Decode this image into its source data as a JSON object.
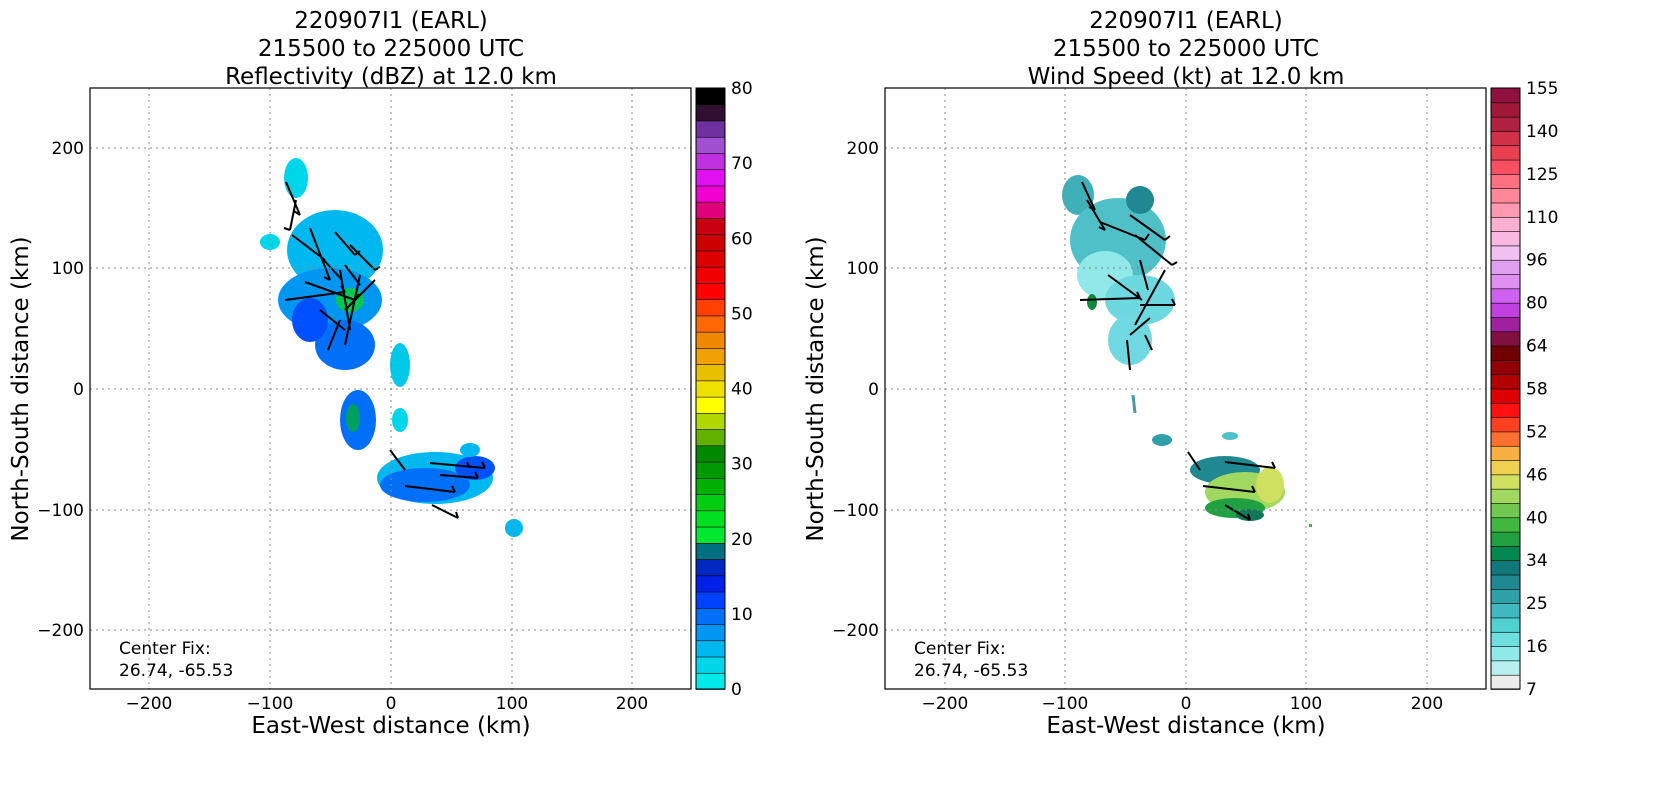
{
  "panels": [
    {
      "title_lines": [
        "220907I1 (EARL)",
        "215500 to 225000 UTC",
        "Reflectivity (dBZ) at 12.0 km"
      ],
      "xlabel": "East-West distance (km)",
      "ylabel": "North-South distance (km)",
      "note_lines": [
        "Center Fix:",
        "26.74, -65.53"
      ],
      "colorbar": {
        "ticks": [
          "0",
          "10",
          "20",
          "30",
          "40",
          "50",
          "60",
          "70",
          "80"
        ],
        "colors": [
          "#00eaea",
          "#00d6ea",
          "#00b8f0",
          "#0096f2",
          "#0070f8",
          "#0040ff",
          "#0020e8",
          "#0028c0",
          "#007080",
          "#00e830",
          "#00e020",
          "#00cc10",
          "#00b000",
          "#009800",
          "#008800",
          "#60b000",
          "#b0d800",
          "#ffff00",
          "#f0e000",
          "#e8c000",
          "#f0a000",
          "#f08800",
          "#ff6800",
          "#ff4000",
          "#ff0000",
          "#f00000",
          "#dd0000",
          "#cc0000",
          "#c80010",
          "#e0007a",
          "#f000d0",
          "#e010f0",
          "#c030e0",
          "#a050d0",
          "#7030a0",
          "#301030",
          "#000000"
        ]
      }
    },
    {
      "title_lines": [
        "220907I1 (EARL)",
        "215500 to 225000 UTC",
        "Wind Speed (kt) at 12.0 km"
      ],
      "xlabel": "East-West distance (km)",
      "ylabel": "North-South distance (km)",
      "note_lines": [
        "Center Fix:",
        "26.74, -65.53"
      ],
      "colorbar": {
        "ticks": [
          "7",
          "16",
          "25",
          "34",
          "40",
          "46",
          "52",
          "58",
          "64",
          "80",
          "96",
          "110",
          "125",
          "140",
          "155"
        ],
        "colors": [
          "#ececec",
          "#b8f0f0",
          "#90eaea",
          "#6ee0e0",
          "#50d0d0",
          "#40b8c0",
          "#30a0a8",
          "#208890",
          "#107878",
          "#008850",
          "#20a040",
          "#40b840",
          "#70c850",
          "#a0d860",
          "#d0e060",
          "#f0d050",
          "#f8b040",
          "#ff7030",
          "#ff4020",
          "#ff1010",
          "#dd0000",
          "#b00000",
          "#900000",
          "#700000",
          "#801040",
          "#a020a0",
          "#c040e0",
          "#d060f0",
          "#e090f0",
          "#e0a0f0",
          "#f0c0f0",
          "#f8b8e0",
          "#ffb0d0",
          "#ff98b0",
          "#ff8898",
          "#ff7080",
          "#f85060",
          "#e84050",
          "#d03048",
          "#b02040",
          "#a01838",
          "#901040"
        ]
      }
    }
  ],
  "chart_data": [
    {
      "type": "heatmap",
      "title": "220907I1 (EARL) 215500 to 225000 UTC Reflectivity (dBZ) at 12.0 km",
      "xlabel": "East-West distance (km)",
      "ylabel": "North-South distance (km)",
      "xlim": [
        -250,
        250
      ],
      "ylim": [
        -250,
        250
      ],
      "xticks": [
        -200,
        -100,
        0,
        100,
        200
      ],
      "yticks": [
        -200,
        -100,
        0,
        100,
        200
      ],
      "grid": true,
      "colorbar_range": [
        0,
        80
      ],
      "colorbar_label": "dBZ",
      "echo_regions_dbz": [
        {
          "x": -40,
          "y": 70,
          "dbz": 12
        },
        {
          "x": -55,
          "y": 110,
          "dbz": 6
        },
        {
          "x": -35,
          "y": -30,
          "dbz": 14
        },
        {
          "x": 40,
          "y": -80,
          "dbz": 11
        },
        {
          "x": -85,
          "y": 180,
          "dbz": 4
        },
        {
          "x": 105,
          "y": -115,
          "dbz": 5
        }
      ]
    },
    {
      "type": "heatmap",
      "title": "220907I1 (EARL) 215500 to 225000 UTC Wind Speed (kt) at 12.0 km",
      "xlabel": "East-West distance (km)",
      "ylabel": "North-South distance (km)",
      "xlim": [
        -250,
        250
      ],
      "ylim": [
        -250,
        250
      ],
      "xticks": [
        -200,
        -100,
        0,
        100,
        200
      ],
      "yticks": [
        -200,
        -100,
        0,
        100,
        200
      ],
      "grid": true,
      "colorbar_range": [
        7,
        155
      ],
      "colorbar_label": "kt",
      "wind_regions_kt": [
        {
          "x": -60,
          "y": 110,
          "kt": 20
        },
        {
          "x": -40,
          "y": 40,
          "kt": 14
        },
        {
          "x": 40,
          "y": -85,
          "kt": 38
        },
        {
          "x": 65,
          "y": -75,
          "kt": 42
        },
        {
          "x": -20,
          "y": -40,
          "kt": 27
        }
      ]
    }
  ]
}
